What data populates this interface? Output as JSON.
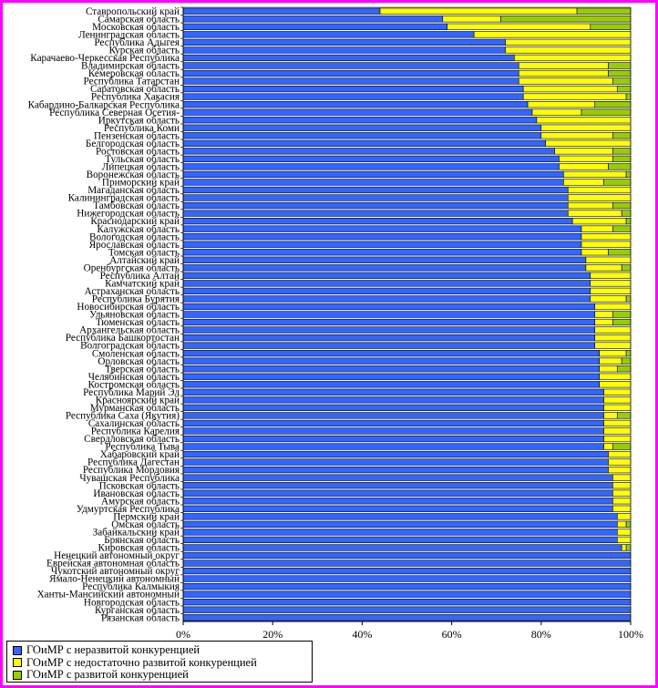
{
  "chart_data": {
    "type": "bar",
    "stacked": "percent",
    "orientation": "horizontal",
    "xlim": [
      0,
      100
    ],
    "x_ticks": [
      "0%",
      "20%",
      "40%",
      "60%",
      "80%",
      "100%"
    ],
    "grid": false,
    "legend_position": "bottom-left",
    "categories": [
      "Ставропольский край",
      "Самарская область",
      "Московская область",
      "Ленинградская область",
      "Республика Адыгея",
      "Курская область",
      "Карачаево-Черкесская Республика",
      "Владимирская область",
      "Кемеровская область",
      "Республика Татарстан",
      "Саратовская область",
      "Республика Хакасия",
      "Кабардино-Балкарская Республика",
      "Республика Северная Осетия-",
      "Иркутская область",
      "Республика Коми",
      "Пензенская область",
      "Белгородская область",
      "Ростовская область",
      "Тульская область",
      "Липецкая область",
      "Воронежская область",
      "Приморский край",
      "Магаданская область",
      "Калининградская область",
      "Тамбовская область",
      "Нижегородская область",
      "Краснодарский край",
      "Калужская область",
      "Вологодская область",
      "Ярославская область",
      "Томская область",
      "Алтайский край",
      "Оренбургская область",
      "Республика Алтай",
      "Камчатский край",
      "Астраханская область",
      "Республика Бурятия",
      "Новосибирская область",
      "Ульяновская область",
      "Тюменская область",
      "Архангельская область",
      "Республика Башкортостан",
      "Волгоградская область",
      "Смоленская область",
      "Орловская область",
      "Тверская область",
      "Челябинская область",
      "Костромская область",
      "Республика Марий Эл",
      "Красноярский край",
      "Мурманская область",
      "Республика Саха (Якутия)",
      "Сахалинская область",
      "Республика Карелия",
      "Свердловская область",
      "Республика Тыва",
      "Хабаровский край",
      "Республика Дагестан",
      "Республика Мордовия",
      "Чувашская Республика",
      "Псковская область",
      "Ивановская область",
      "Амурская область",
      "Удмуртская Республика",
      "Пермский край",
      "Омская область",
      "Забайкальский край",
      "Брянская область",
      "Кировская область",
      "Ненецкий автономный округ",
      "Еврейская автономная область",
      "Чукотский автономный округ",
      "Ямало-Ненецкий автономный",
      "Республика Калмыкия",
      "Ханты-Мансийский автономный",
      "Новгородская область",
      "Курганская область",
      "Рязанская область"
    ],
    "series": [
      {
        "name": "ГОиМР с неразвитой конкуренцией",
        "color": "#3366ff",
        "values": [
          44,
          58,
          59,
          65,
          72,
          72,
          74,
          75,
          75,
          75,
          76,
          76,
          77,
          78,
          79,
          80,
          80,
          81,
          83,
          84,
          84,
          85,
          85,
          86,
          86,
          86,
          86,
          87,
          89,
          89,
          89,
          89,
          90,
          90,
          91,
          91,
          91,
          91,
          92,
          92,
          92,
          92,
          92,
          92,
          93,
          93,
          93,
          93,
          93,
          94,
          94,
          94,
          94,
          94,
          94,
          94,
          94,
          95,
          95,
          95,
          96,
          96,
          96,
          96,
          96,
          97,
          97,
          97,
          97,
          98,
          100,
          100,
          100,
          100,
          100,
          100,
          100,
          100,
          100
        ]
      },
      {
        "name": "ГОиМР с недостаточно развитой конкуренцией",
        "color": "#ffff00",
        "values": [
          44,
          13,
          32,
          35,
          28,
          28,
          26,
          20,
          20,
          21,
          21,
          23,
          15,
          11,
          21,
          20,
          16,
          19,
          13,
          12,
          11,
          14,
          9,
          14,
          14,
          10,
          12,
          12,
          7,
          11,
          11,
          6,
          10,
          8,
          9,
          9,
          9,
          8,
          8,
          4,
          4,
          8,
          8,
          8,
          6,
          5,
          4,
          7,
          7,
          6,
          6,
          6,
          3,
          6,
          6,
          6,
          2,
          5,
          5,
          5,
          4,
          4,
          4,
          4,
          4,
          3,
          2,
          3,
          3,
          1,
          0,
          0,
          0,
          0,
          0,
          0,
          0,
          0,
          0
        ]
      },
      {
        "name": "ГОиМР с развитой конкуренцией",
        "color": "#99cc00",
        "values": [
          12,
          29,
          9,
          0,
          0,
          0,
          0,
          5,
          5,
          4,
          3,
          1,
          8,
          11,
          0,
          0,
          4,
          0,
          4,
          4,
          5,
          1,
          6,
          0,
          0,
          4,
          2,
          1,
          4,
          0,
          0,
          5,
          0,
          2,
          0,
          0,
          0,
          1,
          0,
          4,
          4,
          0,
          0,
          0,
          1,
          2,
          3,
          0,
          0,
          0,
          0,
          0,
          3,
          0,
          0,
          0,
          4,
          0,
          0,
          0,
          0,
          0,
          0,
          0,
          0,
          0,
          1,
          0,
          0,
          1,
          0,
          0,
          0,
          0,
          0,
          0,
          0,
          0,
          0
        ]
      }
    ]
  }
}
